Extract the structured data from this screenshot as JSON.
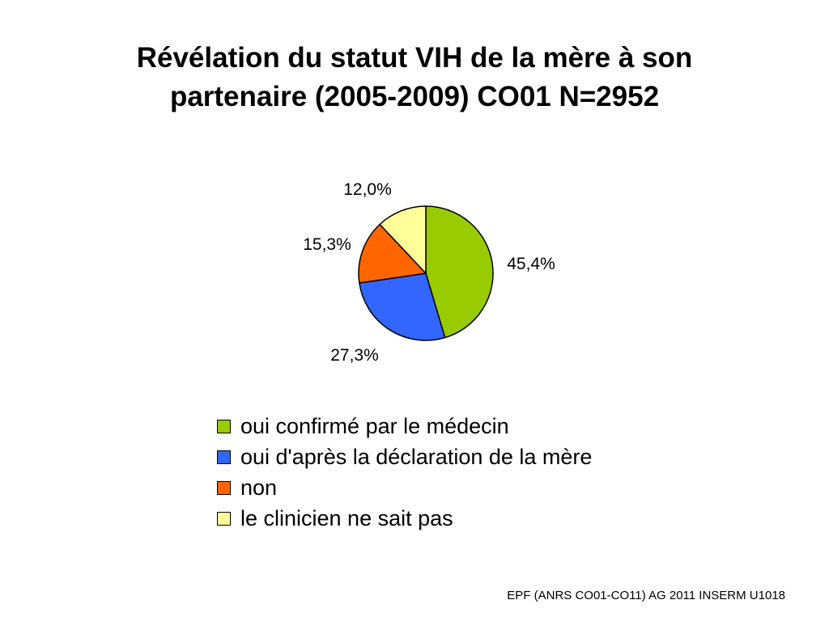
{
  "title": {
    "line1": "Révélation du statut VIH de la mère à son",
    "line2": "partenaire (2005-2009) CO01 N=2952"
  },
  "chart_data": {
    "type": "pie",
    "title": "Révélation du statut VIH de la mère à son partenaire (2005-2009) CO01 N=2952",
    "slices": [
      {
        "label": "oui confirmé par le médecin",
        "value": 45.4,
        "display": "45,4%",
        "color": "#99CC00"
      },
      {
        "label": "oui d'après la déclaration de la mère",
        "value": 27.3,
        "display": "27,3%",
        "color": "#3366FF"
      },
      {
        "label": "non",
        "value": 15.3,
        "display": "15,3%",
        "color": "#FF6600"
      },
      {
        "label": "le clinicien ne sait pas",
        "value": 12.0,
        "display": "12,0%",
        "color": "#FFFF99"
      }
    ],
    "legend_position": "bottom"
  },
  "footer": "EPF (ANRS CO01-CO11) AG 2011 INSERM U1018"
}
